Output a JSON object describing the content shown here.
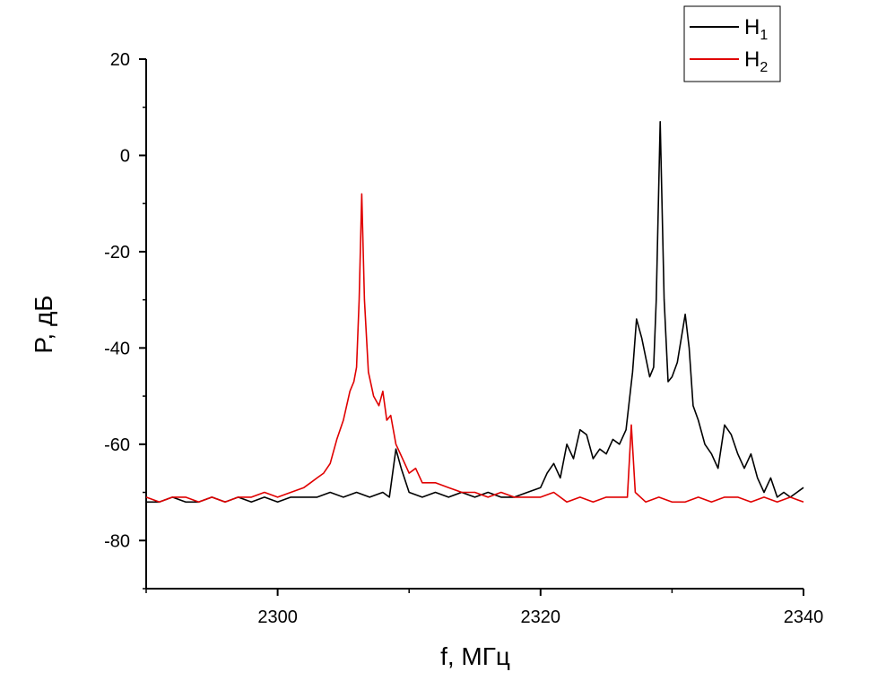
{
  "chart_data": {
    "type": "line",
    "xlabel": "f, МГц",
    "ylabel": "P, дБ",
    "xlim": [
      2290,
      2340
    ],
    "ylim": [
      -90,
      20
    ],
    "x_ticks": [
      2300,
      2320,
      2340
    ],
    "y_ticks": [
      20,
      0,
      -20,
      -40,
      -60,
      -80
    ],
    "legend_position": "top-right",
    "series": [
      {
        "name": "H",
        "subscript": "1",
        "color": "#000000",
        "points": [
          [
            2290,
            -72
          ],
          [
            2291,
            -72
          ],
          [
            2292,
            -71
          ],
          [
            2293,
            -72
          ],
          [
            2294,
            -72
          ],
          [
            2295,
            -71
          ],
          [
            2296,
            -72
          ],
          [
            2297,
            -71
          ],
          [
            2298,
            -72
          ],
          [
            2299,
            -71
          ],
          [
            2300,
            -72
          ],
          [
            2301,
            -71
          ],
          [
            2302,
            -71
          ],
          [
            2303,
            -71
          ],
          [
            2304,
            -70
          ],
          [
            2305,
            -71
          ],
          [
            2306,
            -70
          ],
          [
            2307,
            -71
          ],
          [
            2308,
            -70
          ],
          [
            2308.5,
            -71
          ],
          [
            2309,
            -61
          ],
          [
            2309.4,
            -65
          ],
          [
            2310,
            -70
          ],
          [
            2311,
            -71
          ],
          [
            2312,
            -70
          ],
          [
            2313,
            -71
          ],
          [
            2314,
            -70
          ],
          [
            2315,
            -71
          ],
          [
            2316,
            -70
          ],
          [
            2317,
            -71
          ],
          [
            2318,
            -71
          ],
          [
            2319,
            -70
          ],
          [
            2320,
            -69
          ],
          [
            2320.5,
            -66
          ],
          [
            2321,
            -64
          ],
          [
            2321.5,
            -67
          ],
          [
            2322,
            -60
          ],
          [
            2322.5,
            -63
          ],
          [
            2323,
            -57
          ],
          [
            2323.5,
            -58
          ],
          [
            2324,
            -63
          ],
          [
            2324.5,
            -61
          ],
          [
            2325,
            -62
          ],
          [
            2325.5,
            -59
          ],
          [
            2326,
            -60
          ],
          [
            2326.5,
            -57
          ],
          [
            2327,
            -45
          ],
          [
            2327.3,
            -34
          ],
          [
            2327.7,
            -38
          ],
          [
            2328,
            -42
          ],
          [
            2328.3,
            -46
          ],
          [
            2328.6,
            -44
          ],
          [
            2328.8,
            -30
          ],
          [
            2329.1,
            7
          ],
          [
            2329.4,
            -30
          ],
          [
            2329.7,
            -47
          ],
          [
            2330,
            -46
          ],
          [
            2330.4,
            -43
          ],
          [
            2330.7,
            -38
          ],
          [
            2331,
            -33
          ],
          [
            2331.3,
            -40
          ],
          [
            2331.6,
            -52
          ],
          [
            2332,
            -55
          ],
          [
            2332.5,
            -60
          ],
          [
            2333,
            -62
          ],
          [
            2333.5,
            -65
          ],
          [
            2334,
            -56
          ],
          [
            2334.5,
            -58
          ],
          [
            2335,
            -62
          ],
          [
            2335.5,
            -65
          ],
          [
            2336,
            -62
          ],
          [
            2336.5,
            -67
          ],
          [
            2337,
            -70
          ],
          [
            2337.5,
            -67
          ],
          [
            2338,
            -71
          ],
          [
            2338.5,
            -70
          ],
          [
            2339,
            -71
          ],
          [
            2339.5,
            -70
          ],
          [
            2340,
            -69
          ]
        ]
      },
      {
        "name": "H",
        "subscript": "2",
        "color": "#e00000",
        "points": [
          [
            2290,
            -71
          ],
          [
            2291,
            -72
          ],
          [
            2292,
            -71
          ],
          [
            2293,
            -71
          ],
          [
            2294,
            -72
          ],
          [
            2295,
            -71
          ],
          [
            2296,
            -72
          ],
          [
            2297,
            -71
          ],
          [
            2298,
            -71
          ],
          [
            2299,
            -70
          ],
          [
            2300,
            -71
          ],
          [
            2301,
            -70
          ],
          [
            2302,
            -69
          ],
          [
            2302.5,
            -68
          ],
          [
            2303,
            -67
          ],
          [
            2303.5,
            -66
          ],
          [
            2304,
            -64
          ],
          [
            2304.5,
            -59
          ],
          [
            2305,
            -55
          ],
          [
            2305.5,
            -49
          ],
          [
            2305.8,
            -47
          ],
          [
            2306,
            -44
          ],
          [
            2306.2,
            -30
          ],
          [
            2306.4,
            -8
          ],
          [
            2306.6,
            -30
          ],
          [
            2306.9,
            -45
          ],
          [
            2307.3,
            -50
          ],
          [
            2307.7,
            -52
          ],
          [
            2308,
            -49
          ],
          [
            2308.3,
            -55
          ],
          [
            2308.6,
            -54
          ],
          [
            2309,
            -60
          ],
          [
            2309.5,
            -63
          ],
          [
            2310,
            -66
          ],
          [
            2310.5,
            -65
          ],
          [
            2311,
            -68
          ],
          [
            2312,
            -68
          ],
          [
            2313,
            -69
          ],
          [
            2314,
            -70
          ],
          [
            2315,
            -70
          ],
          [
            2316,
            -71
          ],
          [
            2317,
            -70
          ],
          [
            2318,
            -71
          ],
          [
            2319,
            -71
          ],
          [
            2320,
            -71
          ],
          [
            2321,
            -70
          ],
          [
            2322,
            -72
          ],
          [
            2323,
            -71
          ],
          [
            2324,
            -72
          ],
          [
            2325,
            -71
          ],
          [
            2326,
            -71
          ],
          [
            2326.6,
            -71
          ],
          [
            2326.9,
            -56
          ],
          [
            2327.2,
            -70
          ],
          [
            2328,
            -72
          ],
          [
            2329,
            -71
          ],
          [
            2330,
            -72
          ],
          [
            2331,
            -72
          ],
          [
            2332,
            -71
          ],
          [
            2333,
            -72
          ],
          [
            2334,
            -71
          ],
          [
            2335,
            -71
          ],
          [
            2336,
            -72
          ],
          [
            2337,
            -71
          ],
          [
            2338,
            -72
          ],
          [
            2339,
            -71
          ],
          [
            2340,
            -72
          ]
        ]
      }
    ]
  }
}
